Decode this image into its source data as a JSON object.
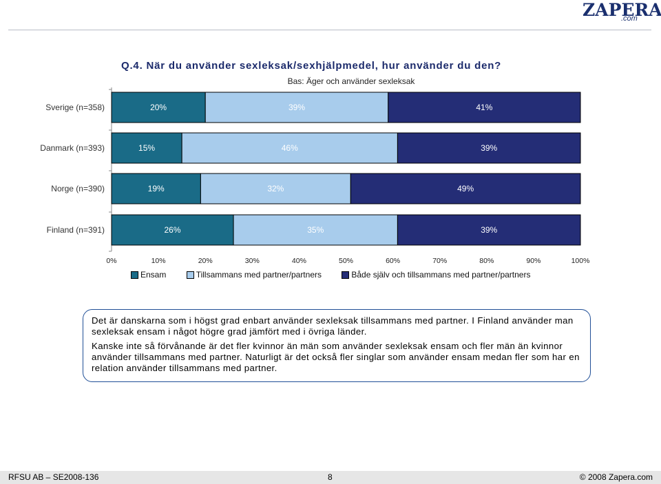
{
  "logo": {
    "main": "ZAPERA",
    "sub": ".com"
  },
  "title": "Q.4. När du använder sexleksak/sexhjälpmedel, hur använder du den?",
  "subtitle": "Bas: Äger och använder sexleksak",
  "colors": {
    "ensam": "#1a6b87",
    "tillsammans": "#a8ccec",
    "bade": "#242d76"
  },
  "chart_data": {
    "type": "bar",
    "orientation": "horizontal",
    "stacked": true,
    "categories": [
      "Sverige (n=358)",
      "Danmark (n=393)",
      "Norge (n=390)",
      "Finland (n=391)"
    ],
    "series": [
      {
        "name": "Ensam",
        "values": [
          20,
          15,
          19,
          26
        ],
        "labels": [
          "20%",
          "15%",
          "19%",
          "26%"
        ]
      },
      {
        "name": "Tillsammans med partner/partners",
        "values": [
          39,
          46,
          32,
          35
        ],
        "labels": [
          "39%",
          "46%",
          "32%",
          "35%"
        ]
      },
      {
        "name": "Både själv och tillsammans med partner/partners",
        "values": [
          41,
          39,
          49,
          39
        ],
        "labels": [
          "41%",
          "39%",
          "49%",
          "39%"
        ]
      }
    ],
    "xlim": [
      0,
      100
    ],
    "xticks": [
      "0%",
      "10%",
      "20%",
      "30%",
      "40%",
      "50%",
      "60%",
      "70%",
      "80%",
      "90%",
      "100%"
    ],
    "grid": false,
    "legend": "bottom"
  },
  "note": {
    "p1": "Det är danskarna som i högst grad enbart använder sexleksak tillsammans med partner. I Finland använder man sexleksak ensam i något högre grad jämfört med i övriga länder.",
    "p2": "Kanske inte så förvånande är det fler kvinnor än män som använder sexleksak ensam och fler män än kvinnor använder tillsammans med partner. Naturligt är det också fler singlar som använder ensam medan fler som har en relation använder tillsammans med partner."
  },
  "footer": {
    "left": "RFSU AB – SE2008-136",
    "page": "8",
    "right": "© 2008 Zapera.com"
  }
}
